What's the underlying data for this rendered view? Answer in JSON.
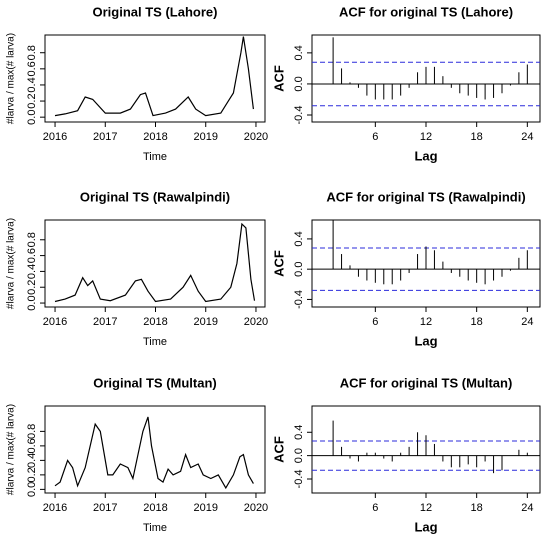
{
  "chart_data": [
    {
      "type": "line",
      "title": "Original TS (Lahore)",
      "x_label": "Time",
      "y_label": "#larva / max(# larva)",
      "color": "#000000",
      "x": [
        2016.0,
        2016.2,
        2016.45,
        2016.6,
        2016.75,
        2017.0,
        2017.3,
        2017.5,
        2017.7,
        2017.8,
        2017.95,
        2018.2,
        2018.4,
        2018.65,
        2018.8,
        2019.0,
        2019.3,
        2019.45,
        2019.55,
        2019.7,
        2019.75,
        2019.85,
        2019.95
      ],
      "values": [
        0.02,
        0.04,
        0.08,
        0.25,
        0.22,
        0.05,
        0.05,
        0.1,
        0.28,
        0.3,
        0.02,
        0.05,
        0.1,
        0.25,
        0.1,
        0.02,
        0.05,
        0.2,
        0.3,
        0.8,
        1.0,
        0.6,
        0.1
      ],
      "xlim": [
        2015.8,
        2020.18
      ],
      "xticks": [
        2016,
        2017,
        2018,
        2019,
        2020
      ],
      "ylim": [
        -0.06,
        1.02
      ],
      "yticks": [
        {
          "value": 0,
          "label": "0.0"
        },
        {
          "value": 0.2,
          "label": "0.2"
        },
        {
          "value": 0.4,
          "label": "0.4"
        },
        {
          "value": 0.6,
          "label": "0.6"
        },
        {
          "value": 0.8,
          "label": "0.8"
        }
      ]
    },
    {
      "type": "acf",
      "title": "ACF for original TS (Lahore)",
      "x_label": "Lag",
      "y_label": "ACF",
      "color": "#000000",
      "conf_color": "#2b2bdb",
      "x": [
        1,
        2,
        3,
        4,
        5,
        6,
        7,
        8,
        9,
        10,
        11,
        12,
        13,
        14,
        15,
        16,
        17,
        18,
        19,
        20,
        21,
        22,
        23,
        24
      ],
      "values": [
        0.6,
        0.2,
        0.02,
        -0.05,
        -0.15,
        -0.2,
        -0.2,
        -0.2,
        -0.15,
        -0.05,
        0.15,
        0.22,
        0.22,
        0.1,
        -0.05,
        -0.12,
        -0.15,
        -0.18,
        -0.2,
        -0.18,
        -0.12,
        -0.02,
        0.15,
        0.25
      ],
      "conf_limits": [
        0.28,
        -0.28
      ],
      "xlim": [
        -1.5,
        25.5
      ],
      "xticks": [
        6,
        12,
        18,
        24
      ],
      "ylim": [
        -0.49,
        0.63
      ],
      "yticks": [
        {
          "value": -0.4,
          "label": "-0.4"
        },
        {
          "value": 0,
          "label": "0.0"
        },
        {
          "value": 0.4,
          "label": "0.4"
        }
      ]
    },
    {
      "type": "line",
      "title": "Original TS (Rawalpindi)",
      "x_label": "Time",
      "y_label": "#larva / max(# larva)",
      "color": "#000000",
      "x": [
        2016.0,
        2016.2,
        2016.4,
        2016.55,
        2016.65,
        2016.75,
        2016.9,
        2017.1,
        2017.4,
        2017.6,
        2017.72,
        2017.85,
        2018.0,
        2018.3,
        2018.55,
        2018.7,
        2018.85,
        2019.0,
        2019.3,
        2019.5,
        2019.62,
        2019.72,
        2019.8,
        2019.9,
        2019.97
      ],
      "values": [
        0.02,
        0.05,
        0.1,
        0.32,
        0.22,
        0.28,
        0.05,
        0.03,
        0.1,
        0.28,
        0.3,
        0.15,
        0.02,
        0.05,
        0.2,
        0.35,
        0.15,
        0.02,
        0.05,
        0.2,
        0.5,
        1.0,
        0.95,
        0.3,
        0.03
      ],
      "xlim": [
        2015.8,
        2020.18
      ],
      "xticks": [
        2016,
        2017,
        2018,
        2019,
        2020
      ],
      "ylim": [
        -0.05,
        1.05
      ],
      "yticks": [
        {
          "value": 0,
          "label": "0.0"
        },
        {
          "value": 0.2,
          "label": "0.2"
        },
        {
          "value": 0.4,
          "label": "0.4"
        },
        {
          "value": 0.6,
          "label": "0.6"
        },
        {
          "value": 0.8,
          "label": "0.8"
        }
      ]
    },
    {
      "type": "acf",
      "title": "ACF for original TS (Rawalpindi)",
      "x_label": "Lag",
      "y_label": "ACF",
      "color": "#000000",
      "conf_color": "#2b2bdb",
      "x": [
        1,
        2,
        3,
        4,
        5,
        6,
        7,
        8,
        9,
        10,
        11,
        12,
        13,
        14,
        15,
        16,
        17,
        18,
        19,
        20,
        21,
        22,
        23,
        24
      ],
      "values": [
        0.65,
        0.2,
        0.05,
        -0.1,
        -0.15,
        -0.18,
        -0.2,
        -0.2,
        -0.15,
        -0.05,
        0.2,
        0.3,
        0.25,
        0.1,
        -0.05,
        -0.1,
        -0.15,
        -0.18,
        -0.2,
        -0.15,
        -0.1,
        -0.02,
        0.15,
        0.25
      ],
      "conf_limits": [
        0.28,
        -0.28
      ],
      "xlim": [
        -1.5,
        25.5
      ],
      "xticks": [
        6,
        12,
        18,
        24
      ],
      "ylim": [
        -0.5,
        0.65
      ],
      "yticks": [
        {
          "value": -0.4,
          "label": "-0.4"
        },
        {
          "value": 0,
          "label": "0.0"
        },
        {
          "value": 0.4,
          "label": "0.4"
        }
      ]
    },
    {
      "type": "line",
      "title": "Original TS (Multan)",
      "x_label": "Time",
      "y_label": "#larva / max(# larva)",
      "color": "#000000",
      "x": [
        2016.0,
        2016.1,
        2016.25,
        2016.35,
        2016.45,
        2016.6,
        2016.8,
        2016.9,
        2017.05,
        2017.15,
        2017.3,
        2017.45,
        2017.55,
        2017.75,
        2017.85,
        2017.92,
        2018.05,
        2018.15,
        2018.25,
        2018.35,
        2018.5,
        2018.6,
        2018.7,
        2018.85,
        2018.95,
        2019.1,
        2019.25,
        2019.4,
        2019.55,
        2019.68,
        2019.75,
        2019.85,
        2019.95
      ],
      "values": [
        0.05,
        0.1,
        0.4,
        0.3,
        0.05,
        0.3,
        0.9,
        0.8,
        0.2,
        0.2,
        0.35,
        0.3,
        0.15,
        0.8,
        1.0,
        0.6,
        0.15,
        0.1,
        0.28,
        0.2,
        0.25,
        0.48,
        0.3,
        0.35,
        0.2,
        0.15,
        0.2,
        0.02,
        0.2,
        0.45,
        0.48,
        0.2,
        0.08
      ],
      "xlim": [
        2015.8,
        2020.18
      ],
      "xticks": [
        2016,
        2017,
        2018,
        2019,
        2020
      ],
      "ylim": [
        -0.05,
        1.15
      ],
      "yticks": [
        {
          "value": 0,
          "label": "0.0"
        },
        {
          "value": 0.2,
          "label": "0.2"
        },
        {
          "value": 0.4,
          "label": "0.4"
        },
        {
          "value": 0.6,
          "label": "0.6"
        },
        {
          "value": 0.8,
          "label": "0.8"
        }
      ]
    },
    {
      "type": "acf",
      "title": "ACF for original TS (Multan)",
      "x_label": "Lag",
      "y_label": "ACF",
      "color": "#000000",
      "conf_color": "#2b2bdb",
      "x": [
        1,
        2,
        3,
        4,
        5,
        6,
        7,
        8,
        9,
        10,
        11,
        12,
        13,
        14,
        15,
        16,
        17,
        18,
        19,
        20,
        21,
        22,
        23,
        24
      ],
      "values": [
        0.6,
        0.15,
        -0.05,
        -0.1,
        0.05,
        0.05,
        -0.05,
        -0.1,
        0.05,
        0.15,
        0.4,
        0.35,
        0.2,
        -0.1,
        -0.2,
        -0.2,
        -0.15,
        -0.2,
        -0.1,
        -0.3,
        -0.25,
        0,
        0.1,
        0.05
      ],
      "conf_limits": [
        0.25,
        -0.25
      ],
      "xlim": [
        -1.5,
        25.5
      ],
      "xticks": [
        6,
        12,
        18,
        24
      ],
      "ylim": [
        -0.64,
        0.85
      ],
      "yticks": [
        {
          "value": -0.4,
          "label": "-0.4"
        },
        {
          "value": 0,
          "label": "0.0"
        },
        {
          "value": 0.4,
          "label": "0.4"
        }
      ]
    }
  ]
}
